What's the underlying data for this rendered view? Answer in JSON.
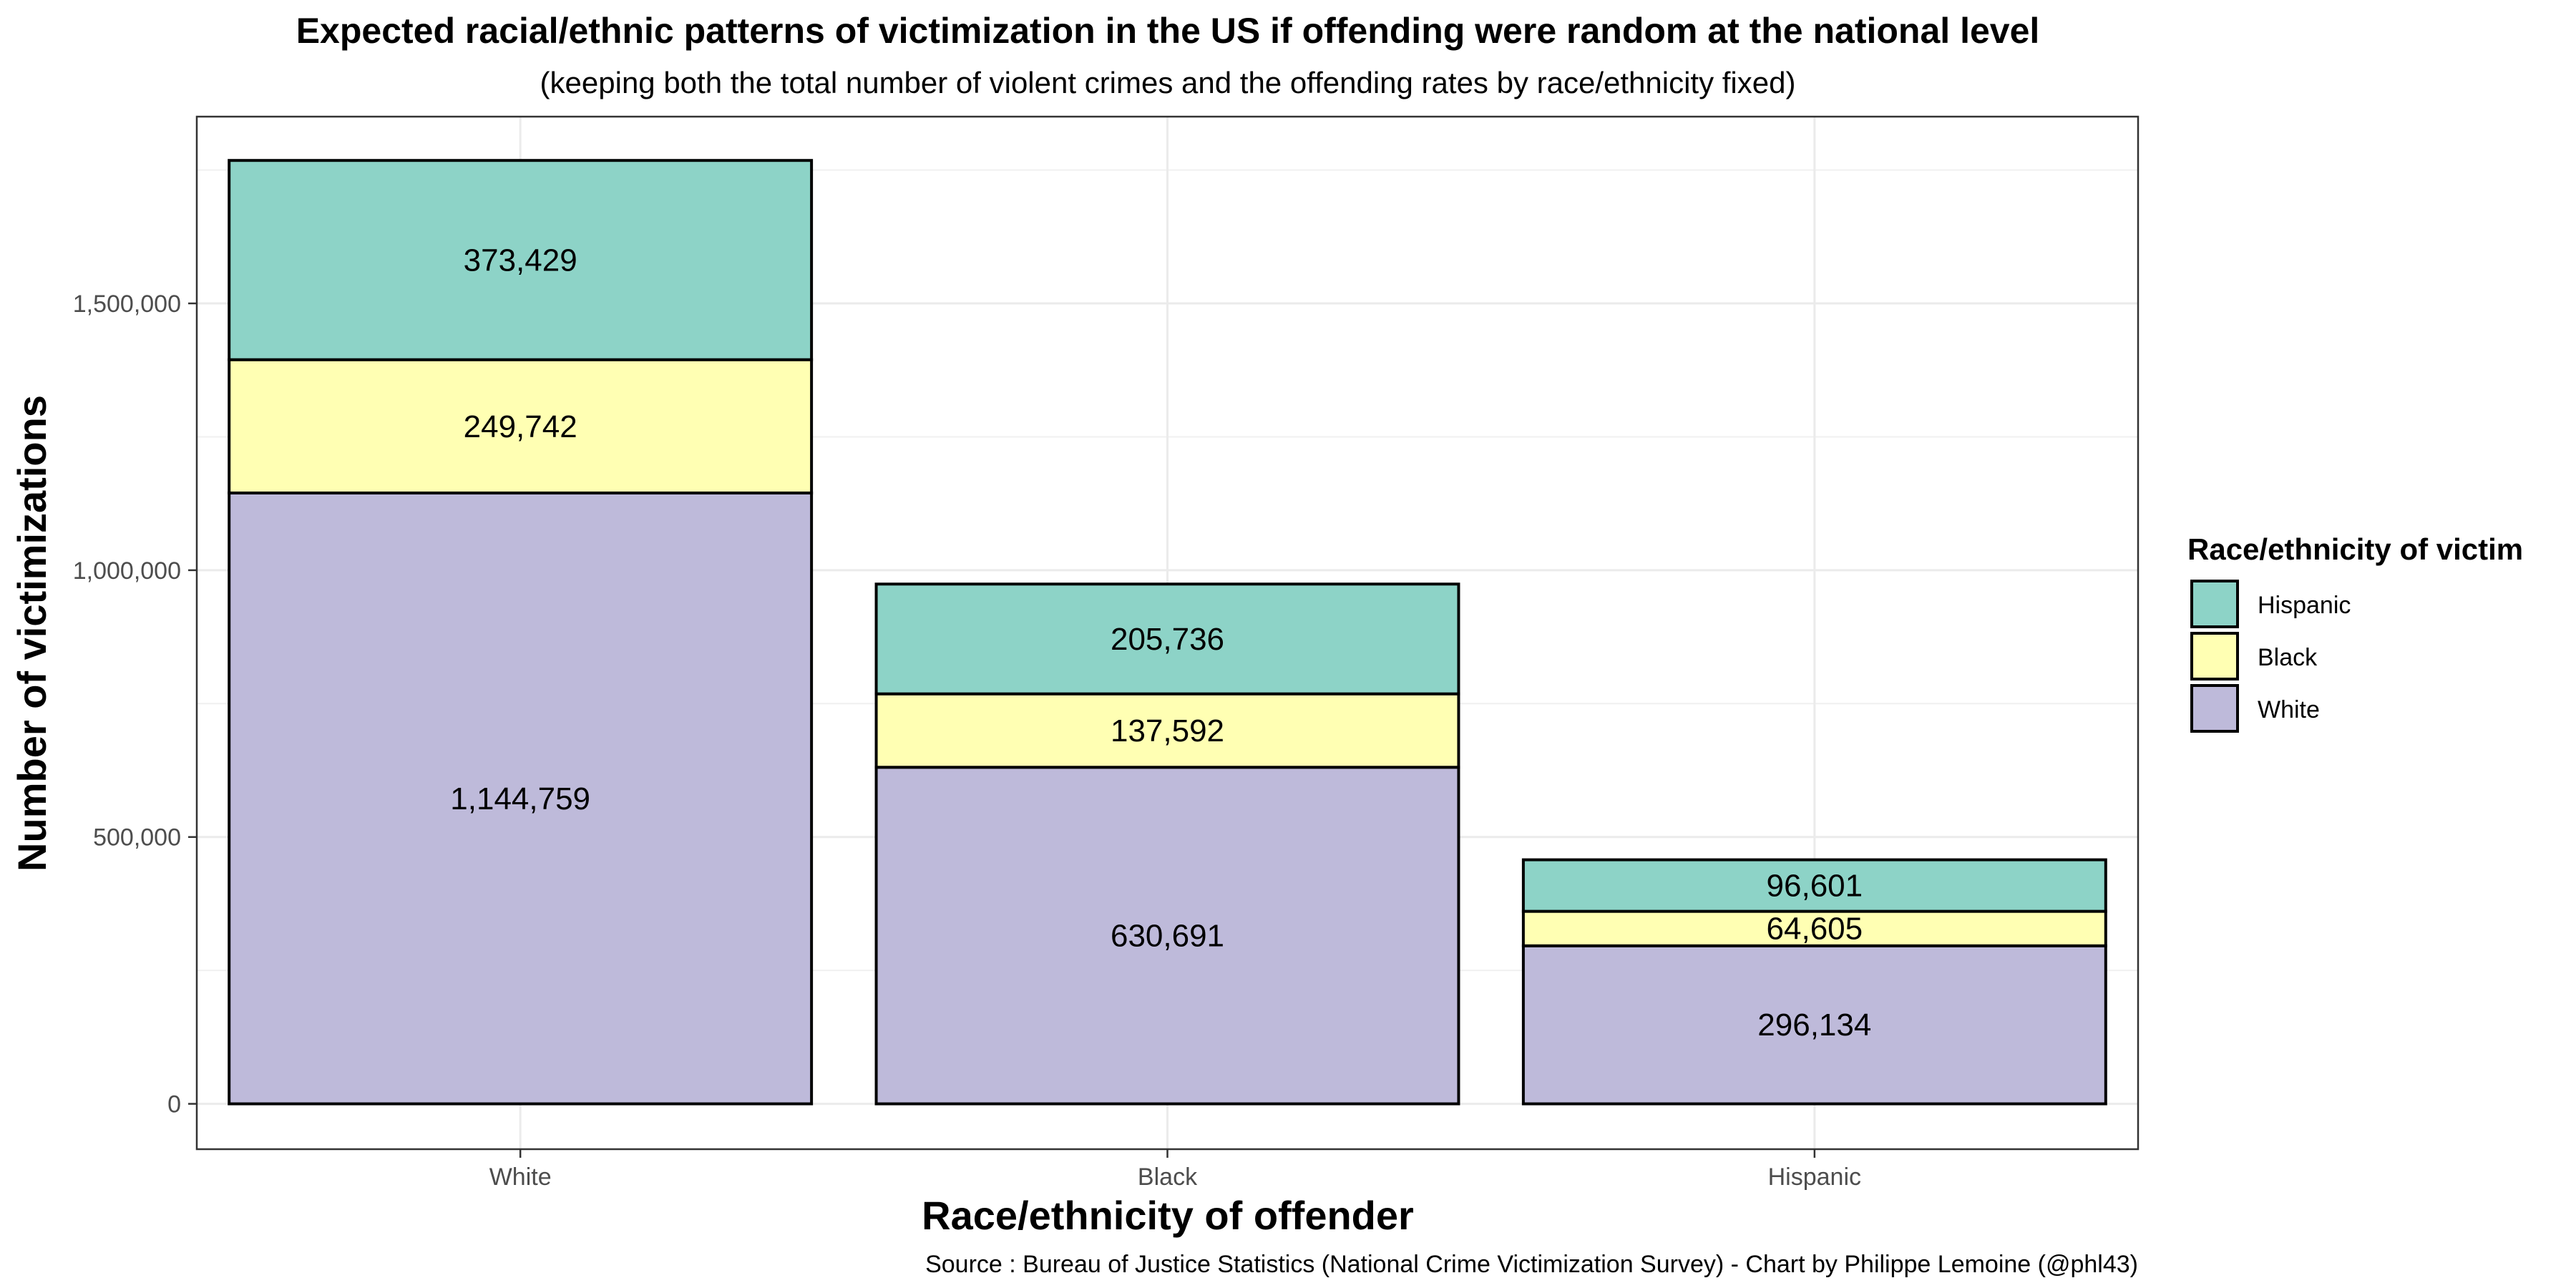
{
  "chart_data": {
    "type": "bar",
    "stacked": true,
    "title": "Expected racial/ethnic patterns of victimization in the US if offending were random at the national level",
    "subtitle": "(keeping both the total number of violent crimes and the offending rates by race/ethnicity fixed)",
    "xlabel": "Race/ethnicity of offender",
    "ylabel": "Number of victimizations",
    "caption": "Source : Bureau of Justice Statistics (National Crime Victimization Survey) - Chart by Philippe Lemoine (@phl43)",
    "categories": [
      "White",
      "Black",
      "Hispanic"
    ],
    "ylim": [
      -85000,
      1850000
    ],
    "yticks": [
      0,
      500000,
      1000000,
      1500000
    ],
    "ytick_labels": [
      "0",
      "500,000",
      "1,000,000",
      "1,500,000"
    ],
    "grid": true,
    "legend": {
      "title": "Race/ethnicity of victim",
      "position": "right"
    },
    "series": [
      {
        "name": "White",
        "color": "#bebada",
        "values": [
          1144759,
          630691,
          296134
        ],
        "labels": [
          "1,144,759",
          "630,691",
          "296,134"
        ]
      },
      {
        "name": "Black",
        "color": "#ffffb3",
        "values": [
          249742,
          137592,
          64605
        ],
        "labels": [
          "249,742",
          "137,592",
          "64,605"
        ]
      },
      {
        "name": "Hispanic",
        "color": "#8dd3c7",
        "values": [
          373429,
          205736,
          96601
        ],
        "labels": [
          "373,429",
          "205,736",
          "96,601"
        ]
      }
    ],
    "legend_order": [
      "Hispanic",
      "Black",
      "White"
    ]
  }
}
